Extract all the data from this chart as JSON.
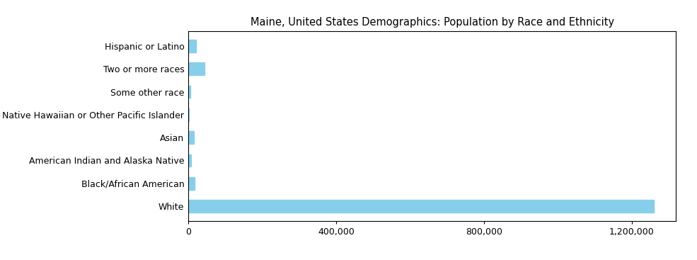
{
  "title": "Maine, United States Demographics: Population by Race and Ethnicity",
  "categories": [
    "White",
    "Black/African American",
    "American Indian and Alaska Native",
    "Asian",
    "Native Hawaiian or Other Pacific Islander",
    "Some other race",
    "Two or more races",
    "Hispanic or Latino"
  ],
  "values": [
    1260000,
    17000,
    7000,
    16000,
    1200,
    5000,
    45000,
    22000
  ],
  "bar_color": "#87CEEB",
  "background_color": "#ffffff",
  "xlim": [
    0,
    1320000
  ],
  "xticks": [
    0,
    400000,
    800000,
    1200000
  ],
  "xtick_labels": [
    "0",
    "400,000",
    "800,000",
    "1,200,000"
  ],
  "title_fontsize": 10.5,
  "ylabel_fontsize": 9,
  "xlabel_fontsize": 9
}
